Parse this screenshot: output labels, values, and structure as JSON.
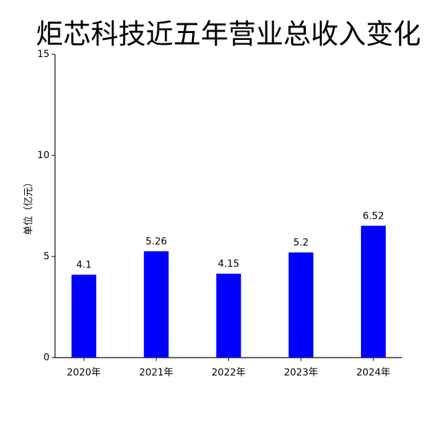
{
  "chart_data": {
    "type": "bar",
    "title": "炬芯科技近五年营业总收入变化",
    "y_label": "单位（亿元）",
    "categories": [
      "2020年",
      "2021年",
      "2022年",
      "2023年",
      "2024年"
    ],
    "values": [
      4.1,
      5.26,
      4.15,
      5.2,
      6.52
    ],
    "color": "#0000ff",
    "ylim": [
      0,
      15
    ],
    "yticks": [
      0,
      5,
      10,
      15
    ],
    "grid": false
  }
}
